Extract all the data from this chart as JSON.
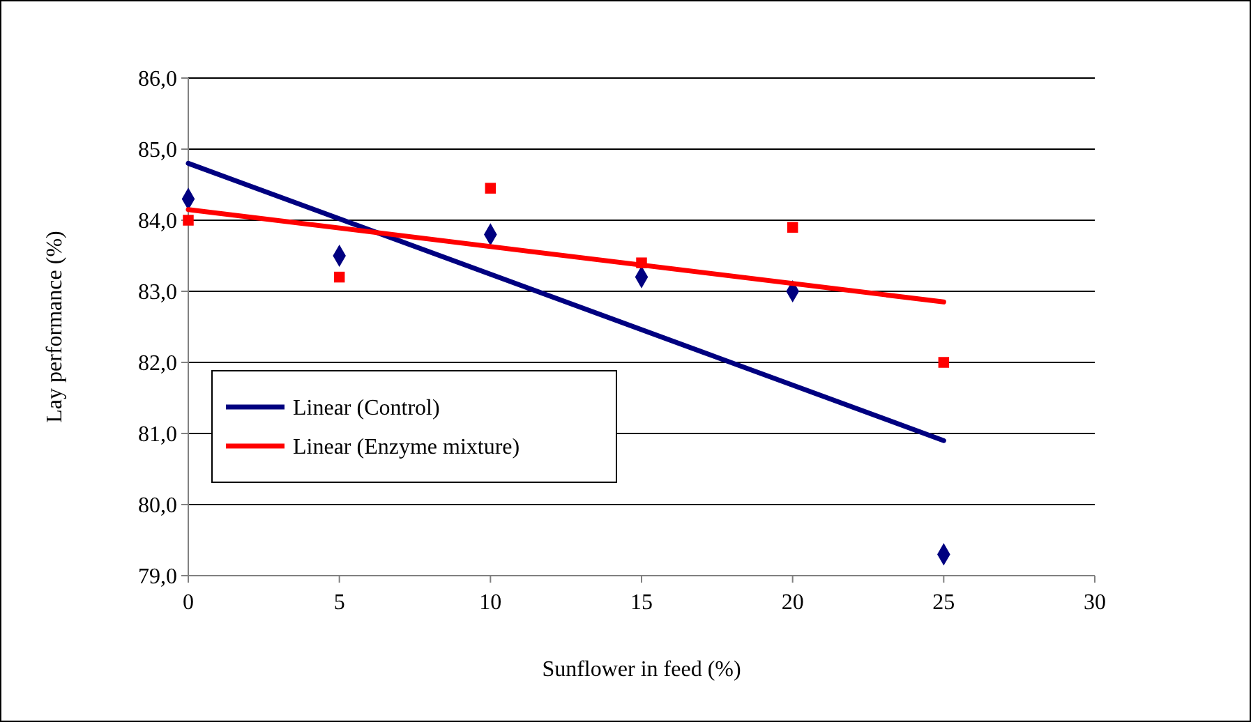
{
  "chart_data": {
    "type": "scatter",
    "xlabel": "Sunflower in feed (%)",
    "ylabel": "Lay performance (%)",
    "xlim": [
      0,
      30
    ],
    "xticks": [
      0,
      5,
      10,
      15,
      20,
      25,
      30
    ],
    "ylim": [
      79,
      86
    ],
    "yticks": [
      {
        "value": 79,
        "label": "79,0"
      },
      {
        "value": 80,
        "label": "80,0"
      },
      {
        "value": 81,
        "label": "81,0"
      },
      {
        "value": 82,
        "label": "82,0"
      },
      {
        "value": 83,
        "label": "83,0"
      },
      {
        "value": 84,
        "label": "84,0"
      },
      {
        "value": 85,
        "label": "85,0"
      },
      {
        "value": 86,
        "label": "86,0"
      }
    ],
    "grid": "y",
    "legend": "left",
    "series": [
      {
        "marker": "diamond",
        "color": "#000080",
        "x": [
          0,
          5,
          10,
          15,
          20,
          25
        ],
        "values": [
          84.3,
          83.5,
          83.8,
          83.2,
          83.0,
          79.3
        ]
      },
      {
        "marker": "square",
        "color": "#ff0000",
        "x": [
          0,
          5,
          10,
          15,
          20,
          25
        ],
        "values": [
          84.0,
          83.2,
          84.45,
          83.4,
          83.9,
          82.0
        ]
      },
      {
        "type": "line",
        "marker": "none",
        "name": "Linear (Control)",
        "color": "#000080",
        "x": [
          0,
          25
        ],
        "values": [
          84.8,
          80.9
        ]
      },
      {
        "type": "line",
        "marker": "none",
        "name": "Linear (Enzyme mixture)",
        "color": "#ff0000",
        "x": [
          0,
          25
        ],
        "values": [
          84.15,
          82.85
        ]
      }
    ]
  }
}
